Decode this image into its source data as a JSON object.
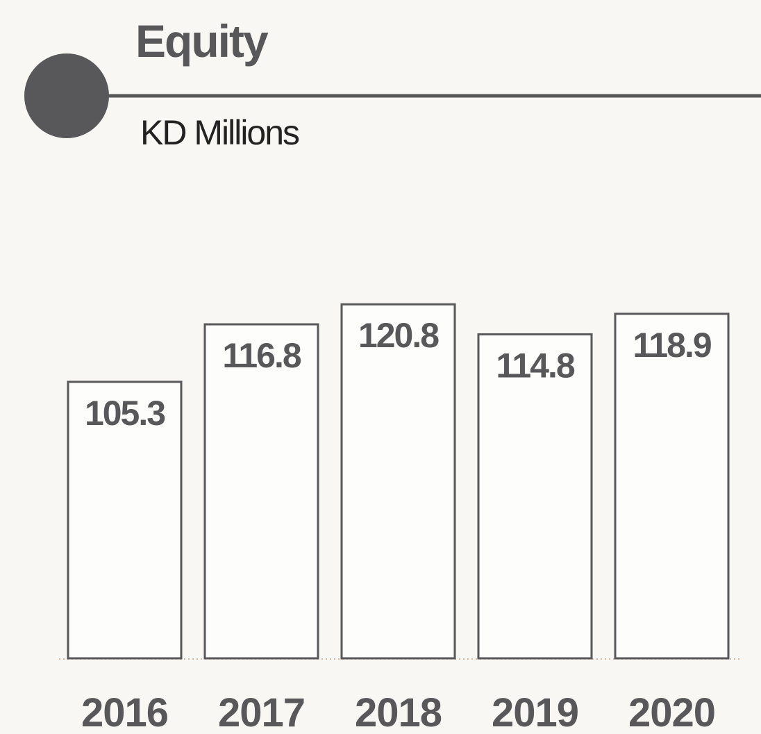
{
  "chart_data": {
    "type": "bar",
    "title": "Equity",
    "subtitle": "KD Millions",
    "categories": [
      "2016",
      "2017",
      "2018",
      "2019",
      "2020"
    ],
    "values": [
      105.3,
      116.8,
      120.8,
      114.8,
      118.9
    ],
    "color": "#fdfdfc",
    "ylim": [
      50,
      125
    ]
  }
}
